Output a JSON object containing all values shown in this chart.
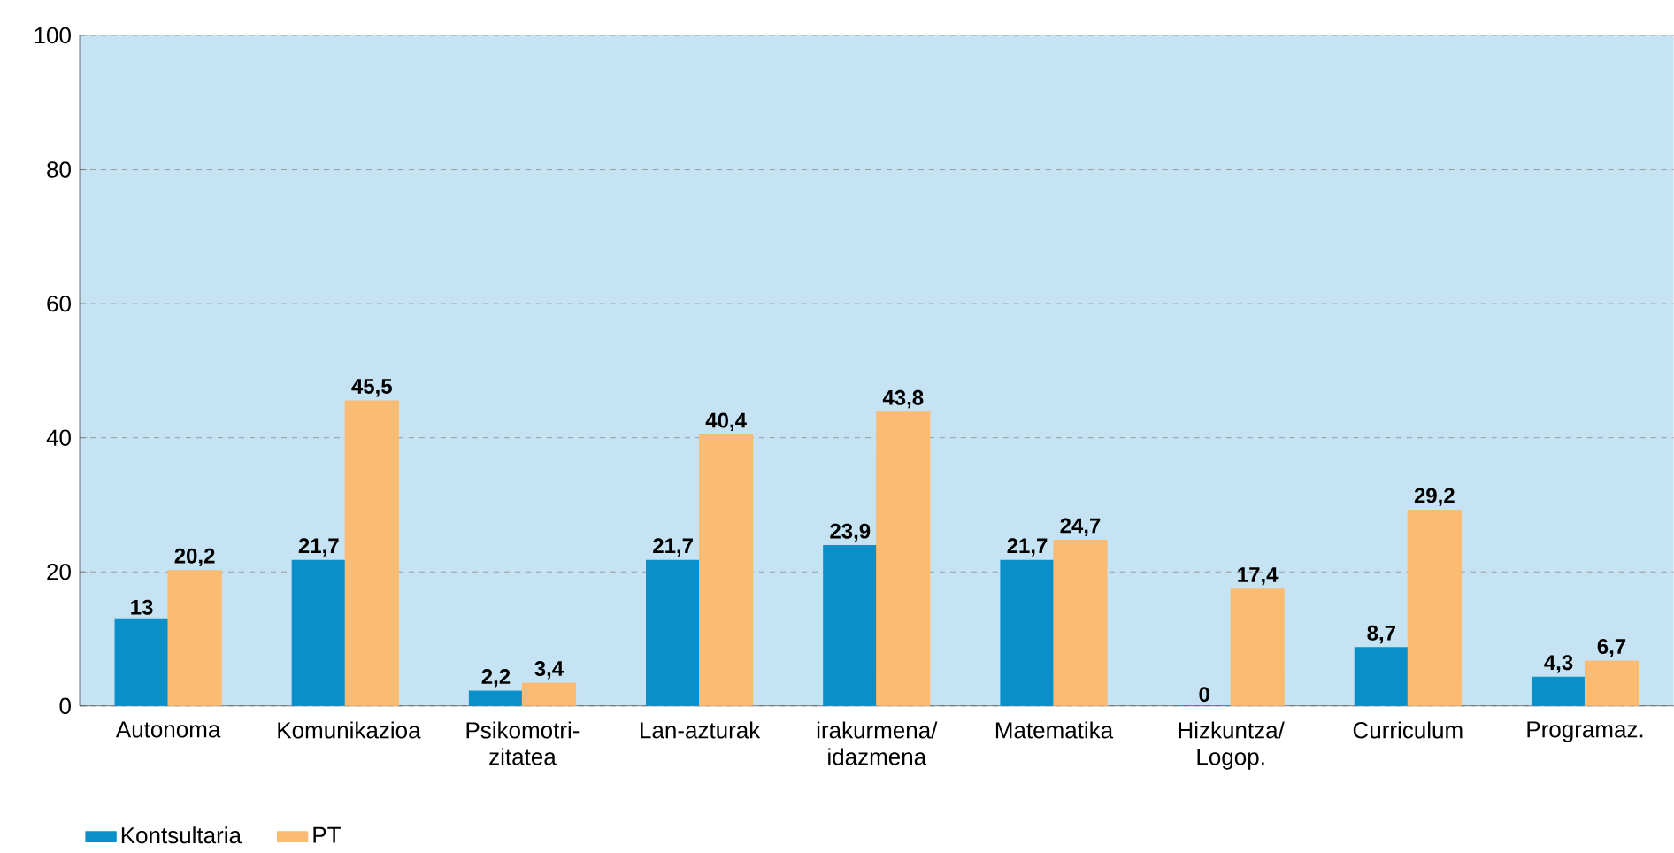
{
  "chart_data": {
    "type": "bar",
    "categories": [
      "Autonoma",
      "Komunikazioa",
      "Psikomotri-zitatea",
      "Lan-azturak",
      "irakurmena/ idazmena",
      "Matematika",
      "Hizkuntza/ Logop.",
      "Curriculum",
      "Programaz."
    ],
    "series": [
      {
        "name": "Kontsultaria",
        "color": "#0a8fc8",
        "values": [
          13,
          21.7,
          2.2,
          21.7,
          23.9,
          21.7,
          0,
          8.7,
          4.3
        ],
        "value_labels": [
          "13",
          "21,7",
          "2,2",
          "21,7",
          "23,9",
          "21,7",
          "0",
          "8,7",
          "4,3"
        ]
      },
      {
        "name": "PT",
        "color": "#fbbb73",
        "values": [
          20.2,
          45.5,
          3.4,
          40.4,
          43.8,
          24.7,
          17.4,
          29.2,
          6.7
        ],
        "value_labels": [
          "20,2",
          "45,5",
          "3,4",
          "40,4",
          "43,8",
          "24,7",
          "17,4",
          "29,2",
          "6,7"
        ]
      }
    ],
    "ylim": [
      0,
      100
    ],
    "yticks": [
      0,
      20,
      40,
      60,
      80,
      100
    ],
    "grid": "y",
    "legend": "bottom left"
  }
}
